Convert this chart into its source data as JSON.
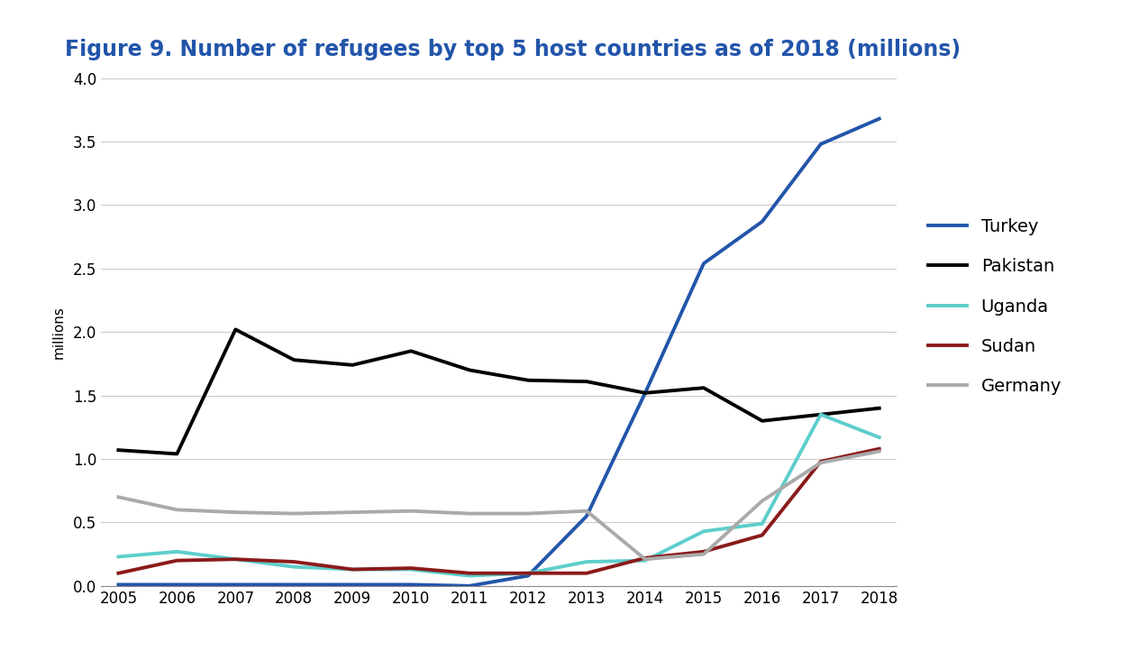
{
  "title": "Figure 9. Number of refugees by top 5 host countries as of 2018 (millions)",
  "ylabel": "millions",
  "years": [
    2005,
    2006,
    2007,
    2008,
    2009,
    2010,
    2011,
    2012,
    2013,
    2014,
    2015,
    2016,
    2017,
    2018
  ],
  "series": [
    {
      "label": "Turkey",
      "color": "#2255AA",
      "linewidth": 2.8,
      "values": [
        0.01,
        0.01,
        0.01,
        0.01,
        0.01,
        0.01,
        0.0,
        0.08,
        0.55,
        1.52,
        2.54,
        2.87,
        3.48,
        3.68
      ]
    },
    {
      "label": "Pakistan",
      "color": "#000000",
      "linewidth": 2.8,
      "values": [
        1.07,
        1.04,
        2.02,
        1.78,
        1.74,
        1.85,
        1.7,
        1.62,
        1.61,
        1.52,
        1.56,
        1.3,
        1.35,
        1.4
      ]
    },
    {
      "label": "Uganda",
      "color": "#5DCECC",
      "linewidth": 2.8,
      "values": [
        0.23,
        0.27,
        0.21,
        0.15,
        0.13,
        0.13,
        0.08,
        0.1,
        0.19,
        0.2,
        0.43,
        0.49,
        1.35,
        1.17
      ]
    },
    {
      "label": "Sudan",
      "color": "#8B1A1A",
      "linewidth": 2.8,
      "values": [
        0.1,
        0.2,
        0.21,
        0.19,
        0.13,
        0.14,
        0.1,
        0.1,
        0.1,
        0.22,
        0.27,
        0.4,
        0.98,
        1.08
      ]
    },
    {
      "label": "Germany",
      "color": "#AAAAAA",
      "linewidth": 2.8,
      "values": [
        0.7,
        0.6,
        0.58,
        0.57,
        0.58,
        0.59,
        0.57,
        0.57,
        0.59,
        0.21,
        0.25,
        0.67,
        0.97,
        1.06
      ]
    }
  ],
  "ylim": [
    0.0,
    4.0
  ],
  "yticks": [
    0.0,
    0.5,
    1.0,
    1.5,
    2.0,
    2.5,
    3.0,
    3.5,
    4.0
  ],
  "background_color": "#FFFFFF",
  "title_color": "#2255AA",
  "title_fontsize": 17,
  "legend_fontsize": 14,
  "tick_fontsize": 12,
  "ylabel_fontsize": 11
}
